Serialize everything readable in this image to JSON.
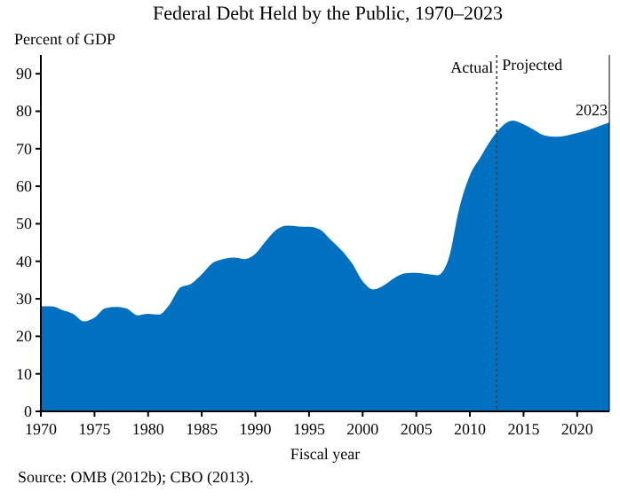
{
  "chart_data": {
    "type": "area",
    "title": "Federal Debt Held by the Public, 1970–2023",
    "xlabel": "Fiscal year",
    "ylabel": "Percent of GDP",
    "x": [
      1970,
      1971,
      1972,
      1973,
      1974,
      1975,
      1976,
      1977,
      1978,
      1979,
      1980,
      1981,
      1982,
      1983,
      1984,
      1985,
      1986,
      1987,
      1988,
      1989,
      1990,
      1991,
      1992,
      1993,
      1994,
      1995,
      1996,
      1997,
      1998,
      1999,
      2000,
      2001,
      2002,
      2003,
      2004,
      2005,
      2006,
      2007,
      2008,
      2009,
      2010,
      2011,
      2012,
      2013,
      2014,
      2015,
      2016,
      2017,
      2018,
      2019,
      2020,
      2021,
      2022,
      2023
    ],
    "series": [
      {
        "color": "#0070c0",
        "values": [
          28,
          28,
          27,
          26,
          24,
          25,
          27.5,
          27.8,
          27.4,
          25.6,
          26,
          25.8,
          28.5,
          33,
          34,
          36.5,
          39.5,
          40.6,
          41,
          40.6,
          42,
          45.5,
          48.5,
          49.5,
          49.3,
          49.2,
          48.5,
          45.8,
          43,
          39.5,
          34.7,
          32.5,
          33.6,
          35.6,
          36.8,
          36.9,
          36.6,
          36.3,
          40.5,
          54,
          62.9,
          67.8,
          72.5,
          76,
          77.5,
          76.5,
          75,
          73.5,
          73.2,
          73.5,
          74.2,
          75,
          76,
          77
        ]
      }
    ],
    "xlim": [
      1970,
      2023
    ],
    "xticks": [
      1970,
      1975,
      1980,
      1985,
      1990,
      1995,
      2000,
      2005,
      2010,
      2015,
      2020
    ],
    "ylim": [
      0,
      95
    ],
    "yticks": [
      0,
      10,
      20,
      30,
      40,
      50,
      60,
      70,
      80,
      90
    ],
    "ref_lines": [
      {
        "axis": "x",
        "value": 2012.5,
        "label": "Actual",
        "color": "#404040",
        "line_style": "dotted"
      }
    ],
    "annotations": [
      {
        "text": "Projected",
        "x": 2012.5,
        "y": 91
      },
      {
        "text": "2023",
        "x": 2023,
        "y": 77
      },
      "Source: OMB (2012b); CBO (2013)."
    ],
    "grid": false
  }
}
